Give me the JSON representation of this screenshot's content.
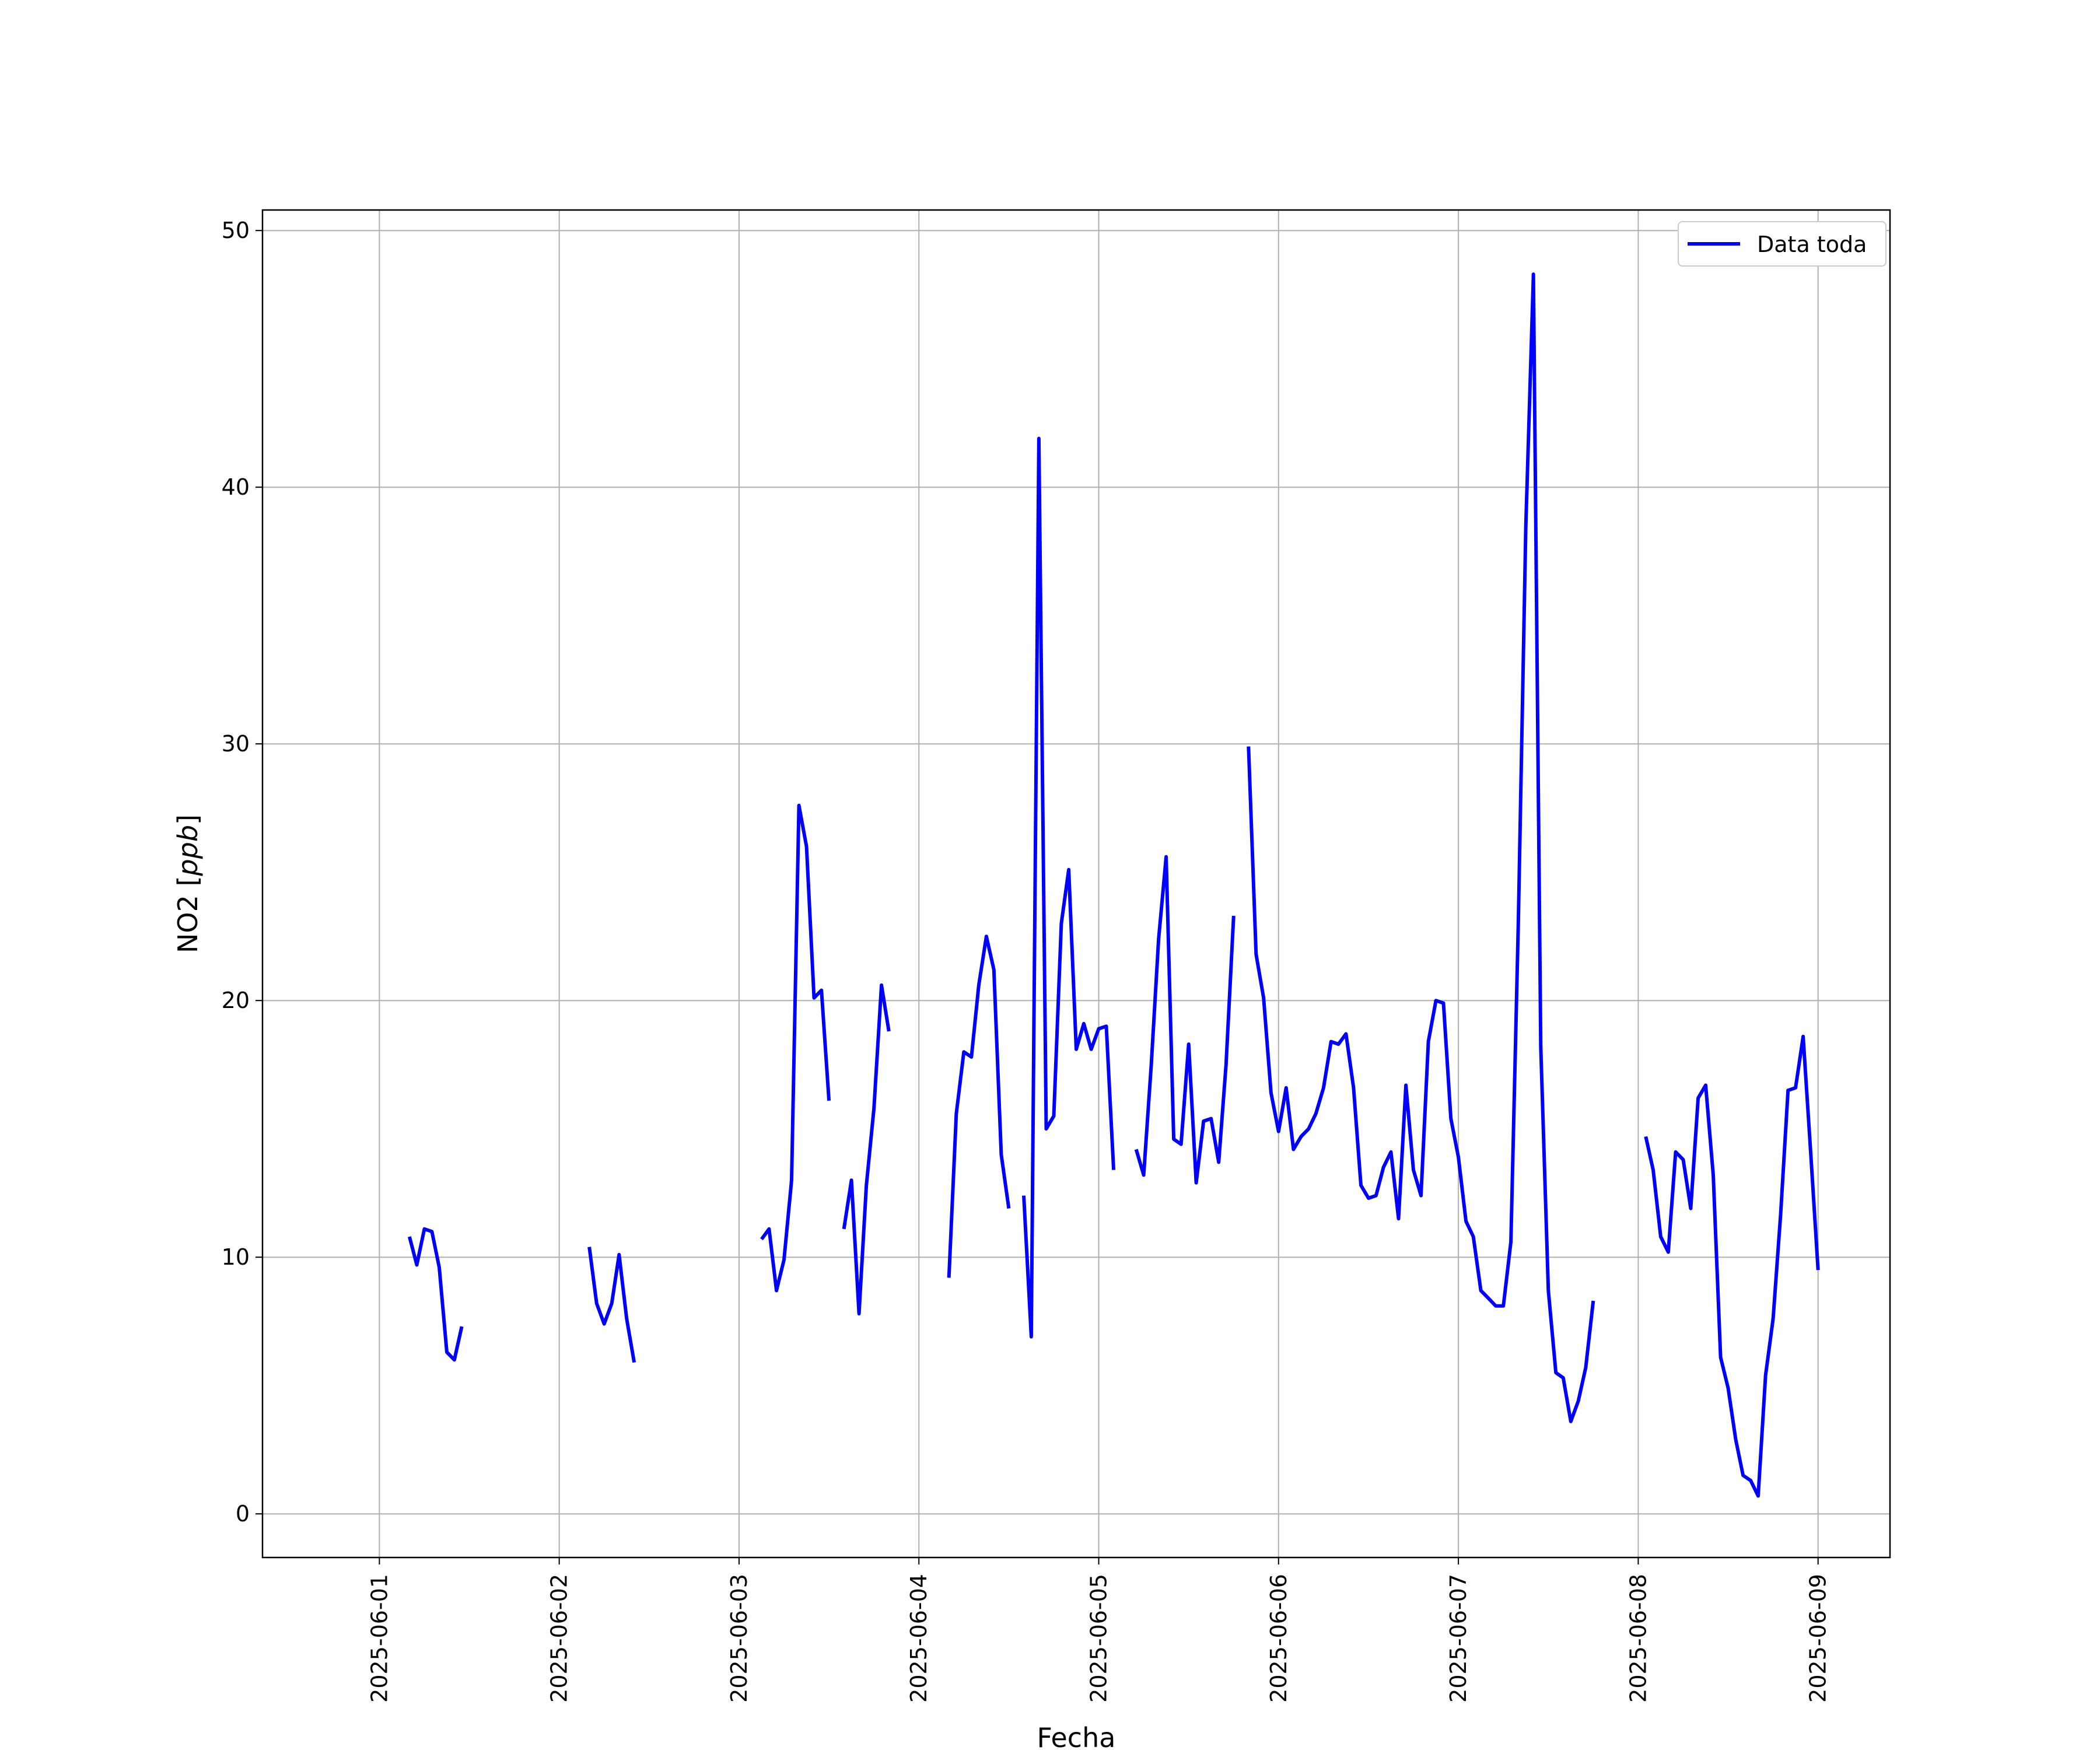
{
  "chart_data": {
    "type": "line",
    "title": "",
    "xlabel": "Fecha",
    "ylabel_text": "NO2 [",
    "ylabel_unit": "ppb",
    "ylabel_close": "]",
    "xlim_days": [
      -0.65,
      8.4
    ],
    "ylim": [
      -1.7,
      50.8
    ],
    "grid": true,
    "legend_position": "top-right",
    "colors": {
      "series": "#0000ff",
      "grid": "#b0b0b0",
      "axes": "#000000"
    },
    "x_ticks": [
      {
        "day": 0,
        "label": "2025-06-01"
      },
      {
        "day": 1,
        "label": "2025-06-02"
      },
      {
        "day": 2,
        "label": "2025-06-03"
      },
      {
        "day": 3,
        "label": "2025-06-04"
      },
      {
        "day": 4,
        "label": "2025-06-05"
      },
      {
        "day": 5,
        "label": "2025-06-06"
      },
      {
        "day": 6,
        "label": "2025-06-07"
      },
      {
        "day": 7,
        "label": "2025-06-08"
      },
      {
        "day": 8,
        "label": "2025-06-09"
      }
    ],
    "y_ticks": [
      {
        "value": 0,
        "label": "0"
      },
      {
        "value": 10,
        "label": "10"
      },
      {
        "value": 20,
        "label": "20"
      },
      {
        "value": 30,
        "label": "30"
      },
      {
        "value": 40,
        "label": "40"
      },
      {
        "value": 50,
        "label": "50"
      }
    ],
    "series": [
      {
        "name": "Data toda",
        "segments": [
          [
            [
              0.167,
              10.8
            ],
            [
              0.208,
              9.7
            ],
            [
              0.25,
              11.1
            ],
            [
              0.292,
              11.0
            ],
            [
              0.333,
              9.6
            ],
            [
              0.375,
              6.3
            ],
            [
              0.417,
              6.0
            ],
            [
              0.458,
              7.3
            ]
          ],
          [
            [
              1.167,
              10.4
            ],
            [
              1.208,
              8.2
            ],
            [
              1.25,
              7.4
            ],
            [
              1.292,
              8.2
            ],
            [
              1.333,
              10.1
            ],
            [
              1.375,
              7.6
            ],
            [
              1.417,
              5.9
            ]
          ],
          [
            [
              2.125,
              10.7
            ],
            [
              2.167,
              11.1
            ],
            [
              2.208,
              8.7
            ],
            [
              2.25,
              9.9
            ],
            [
              2.292,
              13.0
            ],
            [
              2.333,
              27.6
            ],
            [
              2.375,
              26.0
            ],
            [
              2.417,
              20.1
            ],
            [
              2.458,
              20.4
            ],
            [
              2.5,
              16.1
            ]
          ],
          [
            [
              2.583,
              11.1
            ],
            [
              2.625,
              13.0
            ],
            [
              2.667,
              7.8
            ],
            [
              2.708,
              12.8
            ],
            [
              2.75,
              15.8
            ],
            [
              2.792,
              20.6
            ],
            [
              2.833,
              18.8
            ]
          ],
          [
            [
              3.167,
              9.2
            ],
            [
              3.208,
              15.6
            ],
            [
              3.25,
              18.0
            ],
            [
              3.292,
              17.8
            ],
            [
              3.333,
              20.6
            ],
            [
              3.375,
              22.5
            ],
            [
              3.417,
              21.2
            ],
            [
              3.458,
              14.0
            ],
            [
              3.5,
              11.9
            ]
          ],
          [
            [
              3.583,
              12.4
            ],
            [
              3.625,
              6.9
            ],
            [
              3.667,
              41.9
            ],
            [
              3.708,
              15.0
            ],
            [
              3.75,
              15.5
            ],
            [
              3.792,
              23.0
            ],
            [
              3.833,
              25.1
            ],
            [
              3.875,
              18.1
            ],
            [
              3.917,
              19.1
            ],
            [
              3.958,
              18.1
            ],
            [
              4.0,
              18.9
            ],
            [
              4.042,
              19.0
            ],
            [
              4.083,
              13.4
            ]
          ],
          [
            [
              4.208,
              14.2
            ],
            [
              4.25,
              13.2
            ],
            [
              4.292,
              17.5
            ],
            [
              4.333,
              22.4
            ],
            [
              4.375,
              25.6
            ],
            [
              4.417,
              14.6
            ],
            [
              4.458,
              14.4
            ],
            [
              4.5,
              18.3
            ],
            [
              4.542,
              12.9
            ],
            [
              4.583,
              15.3
            ],
            [
              4.625,
              15.4
            ],
            [
              4.667,
              13.7
            ],
            [
              4.708,
              17.5
            ],
            [
              4.75,
              23.3
            ]
          ],
          [
            [
              4.833,
              29.9
            ],
            [
              4.875,
              21.8
            ],
            [
              4.917,
              20.1
            ],
            [
              4.958,
              16.4
            ],
            [
              5.0,
              14.9
            ],
            [
              5.042,
              16.6
            ],
            [
              5.083,
              14.2
            ],
            [
              5.125,
              14.7
            ],
            [
              5.167,
              15.0
            ],
            [
              5.208,
              15.6
            ],
            [
              5.25,
              16.6
            ],
            [
              5.292,
              18.4
            ],
            [
              5.333,
              18.3
            ],
            [
              5.375,
              18.7
            ],
            [
              5.417,
              16.6
            ],
            [
              5.458,
              12.8
            ],
            [
              5.5,
              12.3
            ],
            [
              5.542,
              12.4
            ],
            [
              5.583,
              13.5
            ],
            [
              5.625,
              14.1
            ],
            [
              5.667,
              11.5
            ],
            [
              5.708,
              16.7
            ],
            [
              5.75,
              13.4
            ],
            [
              5.792,
              12.4
            ],
            [
              5.833,
              18.4
            ],
            [
              5.875,
              20.0
            ],
            [
              5.917,
              19.9
            ],
            [
              5.958,
              15.4
            ],
            [
              6.0,
              13.9
            ],
            [
              6.042,
              11.4
            ],
            [
              6.083,
              10.8
            ],
            [
              6.125,
              8.7
            ],
            [
              6.167,
              8.4
            ],
            [
              6.208,
              8.1
            ],
            [
              6.25,
              8.1
            ],
            [
              6.292,
              10.6
            ],
            [
              6.333,
              23.0
            ],
            [
              6.375,
              38.5
            ],
            [
              6.417,
              48.3
            ],
            [
              6.458,
              18.2
            ],
            [
              6.5,
              8.7
            ],
            [
              6.542,
              5.5
            ],
            [
              6.583,
              5.3
            ],
            [
              6.625,
              3.6
            ],
            [
              6.667,
              4.4
            ],
            [
              6.708,
              5.7
            ],
            [
              6.75,
              8.3
            ]
          ],
          [
            [
              7.042,
              14.7
            ],
            [
              7.083,
              13.4
            ],
            [
              7.125,
              10.8
            ],
            [
              7.167,
              10.2
            ],
            [
              7.208,
              14.1
            ],
            [
              7.25,
              13.8
            ],
            [
              7.292,
              11.9
            ],
            [
              7.333,
              16.2
            ],
            [
              7.375,
              16.7
            ],
            [
              7.417,
              13.2
            ],
            [
              7.458,
              6.1
            ],
            [
              7.5,
              4.9
            ],
            [
              7.542,
              2.9
            ],
            [
              7.583,
              1.5
            ],
            [
              7.625,
              1.3
            ],
            [
              7.667,
              0.7
            ],
            [
              7.708,
              5.4
            ],
            [
              7.75,
              7.6
            ],
            [
              7.792,
              11.7
            ],
            [
              7.833,
              16.5
            ],
            [
              7.875,
              16.6
            ],
            [
              7.917,
              18.6
            ],
            [
              7.958,
              14.2
            ],
            [
              8.0,
              9.5
            ]
          ]
        ]
      }
    ],
    "legend": [
      {
        "label": "Data toda",
        "color": "#0000ff"
      }
    ]
  }
}
